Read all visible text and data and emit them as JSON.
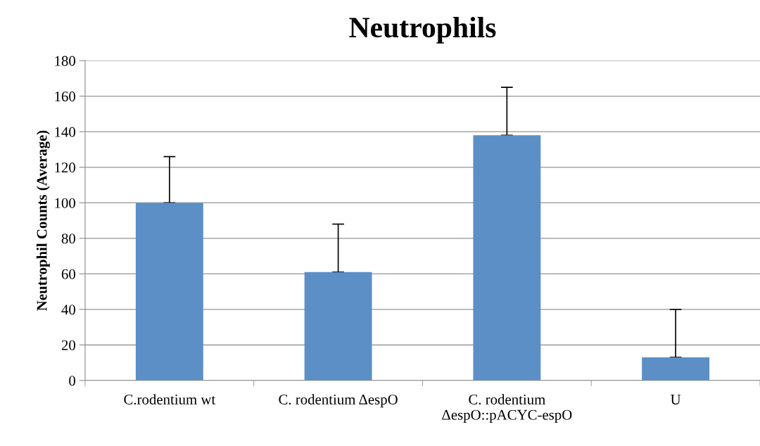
{
  "chart_data": {
    "type": "bar",
    "title": "Neutrophils",
    "ylabel": "Neutrophil Counts (Average)",
    "categories": [
      "C.rodentium wt",
      "C. rodentium ΔespO",
      "C. rodentium\nΔespO::pACYC-espO",
      "U"
    ],
    "values": [
      100,
      61,
      138,
      13
    ],
    "errors": [
      [
        100,
        126
      ],
      [
        61,
        88
      ],
      [
        138,
        165
      ],
      [
        13,
        40
      ]
    ],
    "color": "#5b8fc6",
    "ylim": [
      0,
      180
    ],
    "yticks": [
      0,
      20,
      40,
      60,
      80,
      100,
      120,
      140,
      160,
      180
    ],
    "grid": "y",
    "legend": false
  }
}
